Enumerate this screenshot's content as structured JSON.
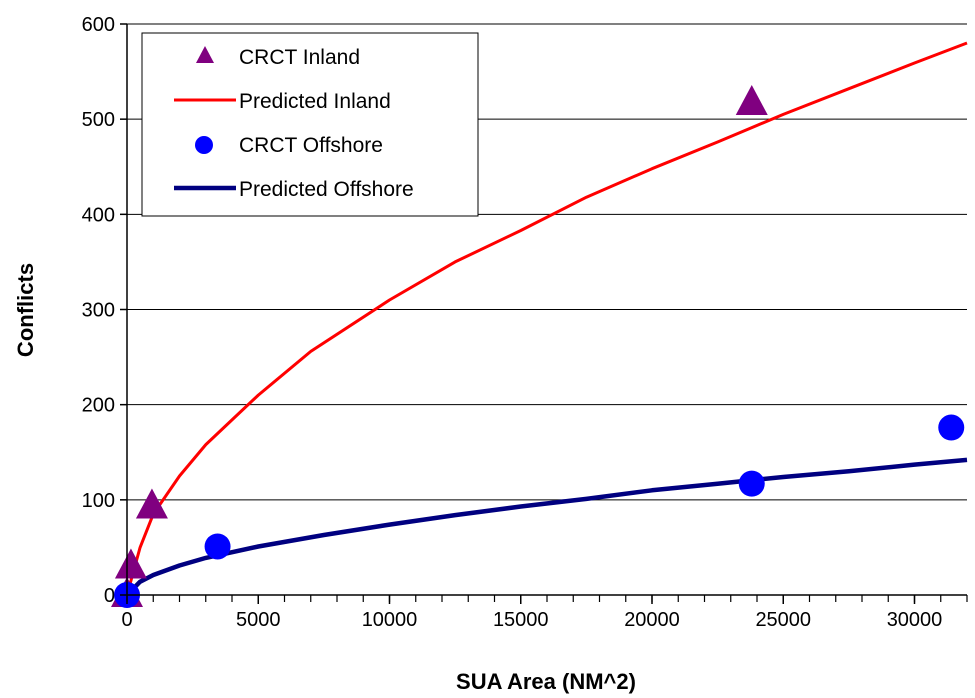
{
  "chart_data": {
    "type": "scatter",
    "title": "",
    "xlabel": "SUA Area (NM^2)",
    "ylabel": "Conflicts",
    "xlim": [
      0,
      32000
    ],
    "ylim": [
      0,
      600
    ],
    "x_ticks": [
      0,
      5000,
      10000,
      15000,
      20000,
      25000,
      30000
    ],
    "x_tick_labels": [
      "0",
      "5000",
      "10000",
      "15000",
      "20000",
      "25000",
      "30000"
    ],
    "y_ticks": [
      0,
      100,
      200,
      300,
      400,
      500,
      600
    ],
    "y_tick_labels": [
      "0",
      "100",
      "200",
      "300",
      "400",
      "500",
      "600"
    ],
    "grid": "horizontal",
    "legend_position": "top-left",
    "series": [
      {
        "name": "CRCT Inland",
        "kind": "scatter",
        "marker": "triangle",
        "color": "#800080",
        "points": [
          [
            0,
            0
          ],
          [
            150,
            30
          ],
          [
            950,
            93
          ],
          [
            23800,
            517
          ]
        ]
      },
      {
        "name": "Predicted Inland",
        "kind": "line",
        "color": "#ff0000",
        "points": [
          [
            0,
            0
          ],
          [
            500,
            50
          ],
          [
            1000,
            85
          ],
          [
            2000,
            125
          ],
          [
            3000,
            158
          ],
          [
            4000,
            184
          ],
          [
            5000,
            210
          ],
          [
            7000,
            256
          ],
          [
            10000,
            310
          ],
          [
            12500,
            350
          ],
          [
            15000,
            383
          ],
          [
            17500,
            418
          ],
          [
            20000,
            448
          ],
          [
            22500,
            476
          ],
          [
            25000,
            505
          ],
          [
            27500,
            532
          ],
          [
            30000,
            559
          ],
          [
            32000,
            580
          ]
        ]
      },
      {
        "name": "CRCT Offshore",
        "kind": "scatter",
        "marker": "circle",
        "color": "#0000ff",
        "points": [
          [
            0,
            0
          ],
          [
            3450,
            51
          ],
          [
            23800,
            117
          ],
          [
            31400,
            176
          ]
        ]
      },
      {
        "name": "Predicted Offshore",
        "kind": "line",
        "color": "#000080",
        "points": [
          [
            0,
            0
          ],
          [
            500,
            14
          ],
          [
            1000,
            21
          ],
          [
            2000,
            31
          ],
          [
            3000,
            39
          ],
          [
            5000,
            51
          ],
          [
            7500,
            63
          ],
          [
            10000,
            74
          ],
          [
            12500,
            84
          ],
          [
            15000,
            93
          ],
          [
            17500,
            101
          ],
          [
            20000,
            110
          ],
          [
            22500,
            117
          ],
          [
            25000,
            124
          ],
          [
            27500,
            130
          ],
          [
            30000,
            137
          ],
          [
            32000,
            142
          ]
        ]
      }
    ]
  }
}
